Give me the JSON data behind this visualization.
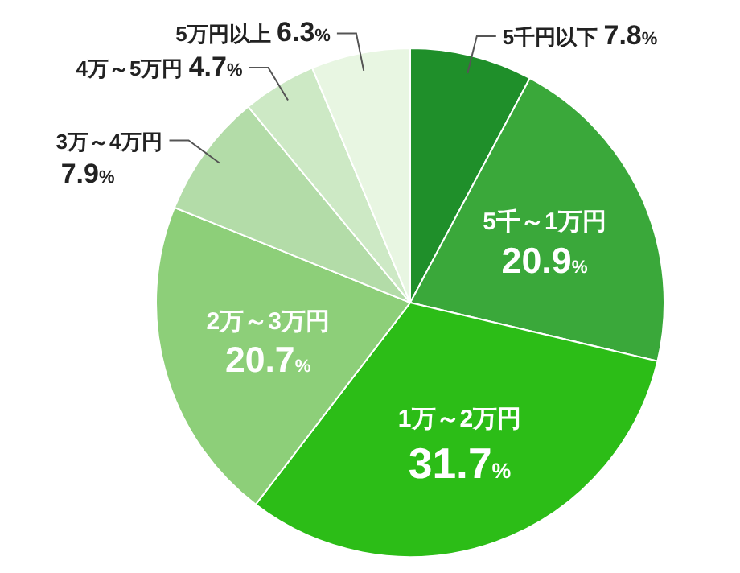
{
  "chart_data": {
    "type": "pie",
    "categories": [
      "5千円以下",
      "5千～1万円",
      "1万～2万円",
      "2万～3万円",
      "3万～4万円",
      "4万～5万円",
      "5万円以上"
    ],
    "values": [
      7.8,
      20.9,
      31.7,
      20.7,
      7.9,
      4.7,
      6.3
    ],
    "colors": [
      "#1f8f2a",
      "#3aa83a",
      "#2cbd17",
      "#8dcf79",
      "#b3dca8",
      "#cde9c5",
      "#e8f6e2"
    ],
    "value_labels": [
      "7.8%",
      "20.9%",
      "31.7%",
      "20.7%",
      "7.9%",
      "4.7%",
      "6.3%"
    ]
  }
}
